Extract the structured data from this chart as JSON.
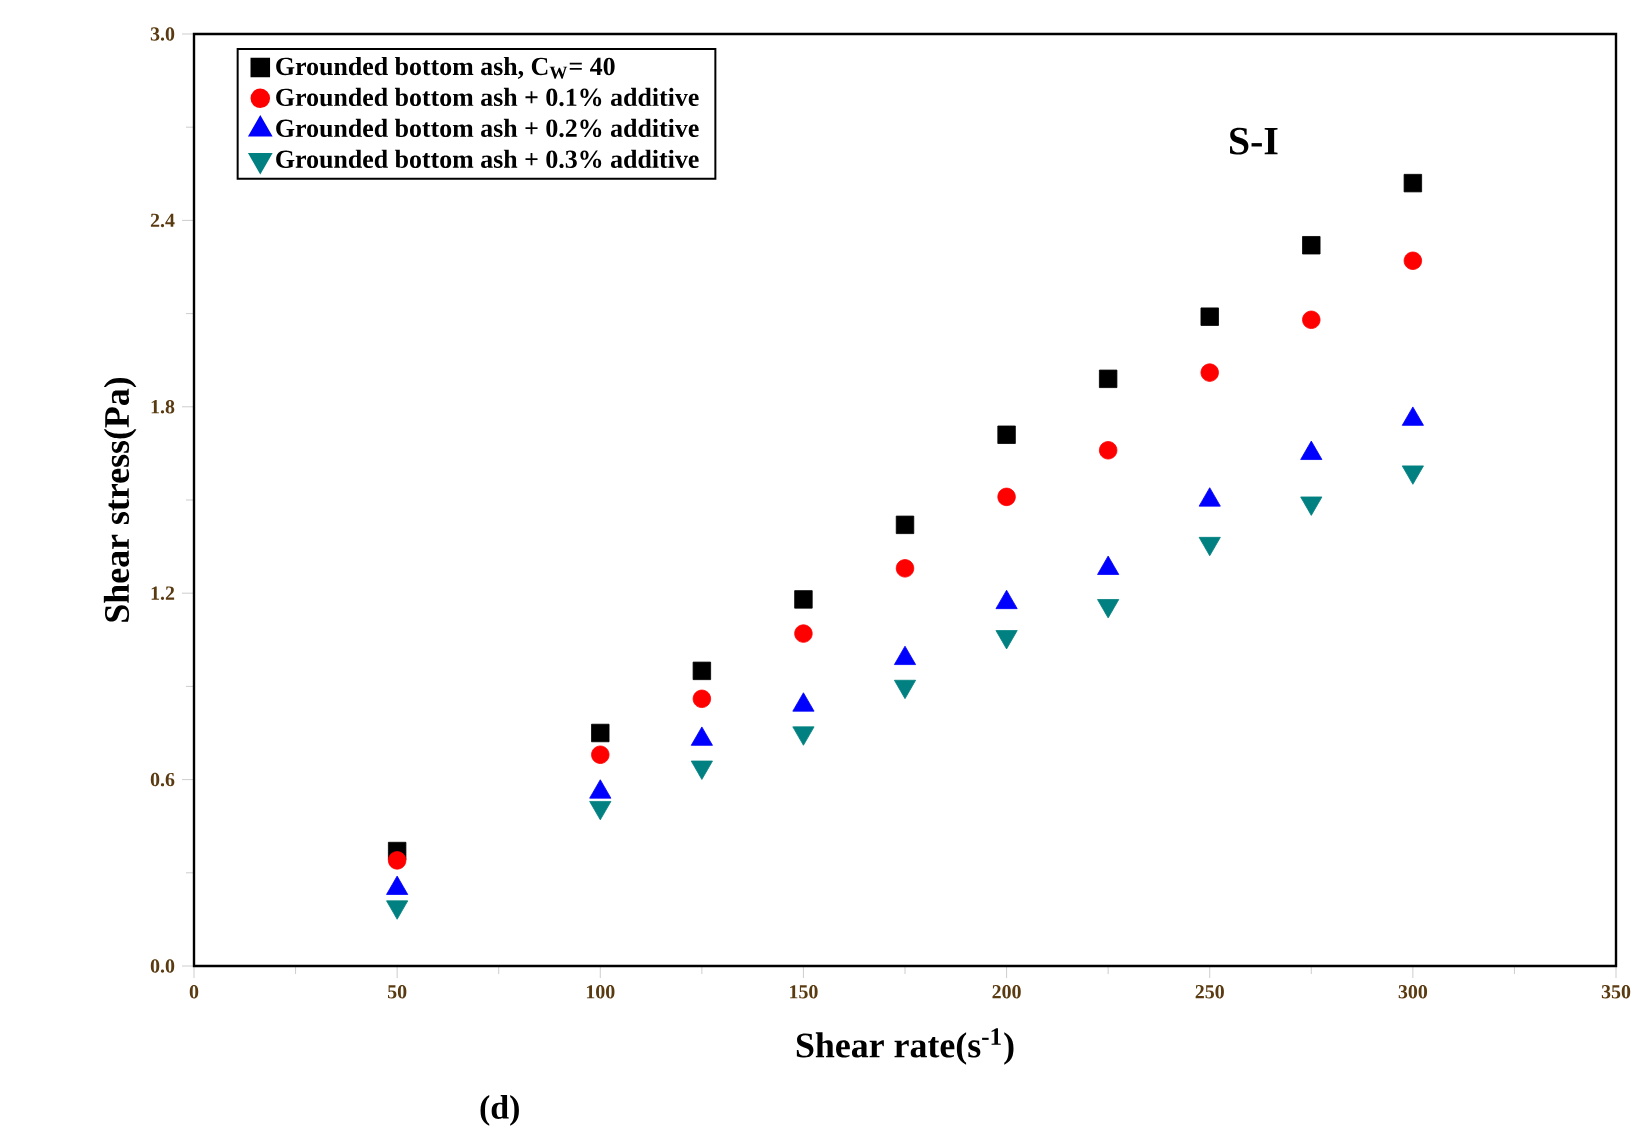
{
  "chart_data": {
    "type": "scatter",
    "xlabel": "Shear rate(s$^{-1}$)",
    "ylabel": "Shear stress(Pa)",
    "annotations": [
      "S-I",
      "(d)"
    ],
    "x": [
      50,
      100,
      125,
      150,
      175,
      200,
      225,
      250,
      275,
      300
    ],
    "series": [
      {
        "name": "Grounded bottom ash, C$_{W}$= 40",
        "color": "#000000",
        "marker": "square",
        "values": [
          0.37,
          0.75,
          0.95,
          1.18,
          1.42,
          1.71,
          1.89,
          2.09,
          2.32,
          2.52
        ]
      },
      {
        "name": "Grounded bottom ash  + 0.1% additive",
        "color": "#ff0000",
        "marker": "circle",
        "values": [
          0.34,
          0.68,
          0.86,
          1.07,
          1.28,
          1.51,
          1.66,
          1.91,
          2.08,
          2.27
        ]
      },
      {
        "name": "Grounded bottom ash +  0.2% additive",
        "color": "#0000ff",
        "marker": "triangle",
        "values": [
          0.25,
          0.56,
          0.73,
          0.84,
          0.99,
          1.17,
          1.28,
          1.5,
          1.65,
          1.76
        ]
      },
      {
        "name": "Grounded bottom ash  + 0.3% additive",
        "color": "#008080",
        "marker": "triangle-down",
        "values": [
          0.19,
          0.51,
          0.64,
          0.75,
          0.9,
          1.06,
          1.16,
          1.36,
          1.49,
          1.59
        ]
      }
    ],
    "xlim": [
      0,
      350
    ],
    "ylim": [
      0,
      3.0
    ],
    "xticks": [
      0,
      50,
      100,
      150,
      200,
      250,
      300,
      350
    ],
    "yticks": [
      {
        "value": 0,
        "label": "0.0"
      },
      {
        "value": 0.6,
        "label": "0.6"
      },
      {
        "value": 1.2,
        "label": "1.2"
      },
      {
        "value": 1.8,
        "label": "1.8"
      },
      {
        "value": 2.4,
        "label": "2.4"
      },
      {
        "value": 3.0,
        "label": "3.0"
      }
    ],
    "grid": false,
    "legend": "top left"
  }
}
